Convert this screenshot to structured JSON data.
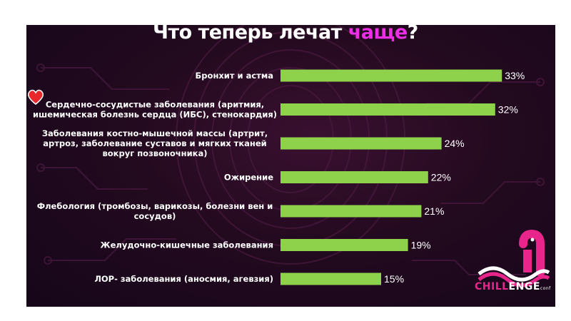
{
  "title": {
    "part1": "Что теперь лечат ",
    "accent": "чаще",
    "part2": "?"
  },
  "logo": {
    "brand_a": "CHILL",
    "brand_b": "ENGE",
    "suffix": "conf"
  },
  "colors": {
    "bar": "#8ed14a",
    "accent": "#ee2ee6",
    "background": "#230a1f",
    "frame": "#ffffff"
  },
  "icons": [
    "heart-icon",
    "serpent-logo-icon"
  ],
  "chart_data": {
    "type": "bar",
    "orientation": "horizontal",
    "categories": [
      [
        "Бронхит и астма"
      ],
      [
        "Сердечно-сосудистые заболевания (аритмия,",
        "ишемическая болезнь сердца (ИБС), стенокардия)"
      ],
      [
        "Заболевания костно-мышечной массы (артрит,",
        "артроз, заболевание суставов и мягких тканей",
        "вокруг позвоночника)"
      ],
      [
        "Ожирение"
      ],
      [
        "Флебология (тромбозы, варикозы, болезни вен и",
        "сосудов)"
      ],
      [
        "Желудочно-кишечные заболевания"
      ],
      [
        "ЛОР- заболевания (аносмия, агевзия)"
      ]
    ],
    "values": [
      33,
      32,
      24,
      22,
      21,
      19,
      15
    ],
    "value_labels": [
      "33%",
      "32%",
      "24%",
      "22%",
      "21%",
      "19%",
      "15%"
    ],
    "xlim": [
      0,
      35
    ],
    "grid": false,
    "legend": "none"
  }
}
